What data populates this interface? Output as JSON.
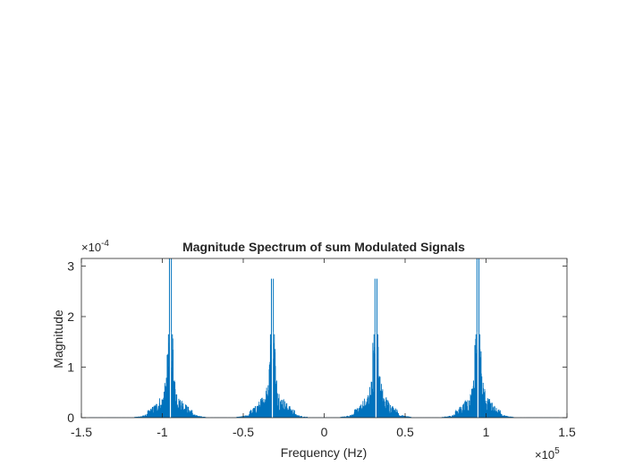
{
  "chart_data": {
    "type": "line",
    "title": "Magnitude Spectrum of sum Modulated Signals",
    "xlabel": "Frequency (Hz)",
    "ylabel": "Magnitude",
    "x_scale_label": "×10",
    "x_scale_exponent": "5",
    "y_scale_label": "×10",
    "y_scale_exponent": "-4",
    "xlim": [
      -1.5,
      1.5
    ],
    "ylim": [
      0,
      3.15
    ],
    "x_ticks": [
      "-1.5",
      "-1",
      "-0.5",
      "0",
      "0.5",
      "1",
      "1.5"
    ],
    "x_tick_values": [
      -1.5,
      -1,
      -0.5,
      0,
      0.5,
      1,
      1.5
    ],
    "y_ticks": [
      "0",
      "1",
      "2",
      "3"
    ],
    "y_tick_values": [
      0,
      1,
      2,
      3
    ],
    "grid": false,
    "line_color": "#0072bd",
    "peaks": [
      {
        "center": -0.95,
        "peak": 3.15,
        "side": 1.65
      },
      {
        "center": -0.32,
        "peak": 2.75,
        "side": 1.65
      },
      {
        "center": 0.32,
        "peak": 2.75,
        "side": 1.65
      },
      {
        "center": 0.95,
        "peak": 3.15,
        "side": 1.65
      }
    ]
  },
  "colors": {
    "series": "#0072bd",
    "axes": "#262626",
    "background": "#ffffff"
  }
}
